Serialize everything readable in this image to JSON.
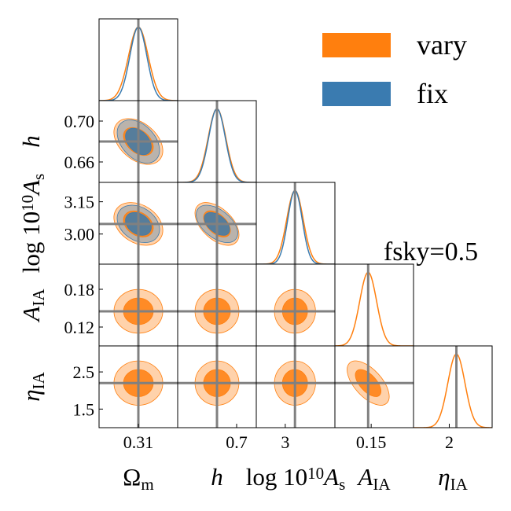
{
  "chart_data": {
    "type": "corner",
    "annotation": "fsky=0.5",
    "params": [
      {
        "label": [
          {
            "text": "Ω"
          },
          {
            "text": "m",
            "pos": "sub"
          }
        ],
        "truth": 0.31,
        "lim": [
          0.25,
          0.37
        ],
        "xticks": [
          0.31
        ]
      },
      {
        "label": [
          {
            "text": "h",
            "italic": true
          }
        ],
        "truth": 0.68,
        "lim": [
          0.64,
          0.72
        ],
        "xticks": [
          0.7
        ],
        "yticks": [
          {
            "value": 0.7,
            "label": "0.70"
          },
          0.66
        ]
      },
      {
        "label": [
          {
            "text": "log 10"
          },
          {
            "text": "10",
            "pos": "sup"
          },
          {
            "text": "A",
            "italic": true
          },
          {
            "text": "s",
            "pos": "sub"
          }
        ],
        "truth": 3.047,
        "lim": [
          2.86,
          3.24
        ],
        "xticks": [
          3
        ],
        "yticks": [
          3.15,
          {
            "value": 3,
            "label": "3.00"
          }
        ]
      },
      {
        "label": [
          {
            "text": "A",
            "italic": true
          },
          {
            "text": "IA",
            "pos": "sub"
          }
        ],
        "truth": 0.145,
        "lim": [
          0.09,
          0.22
        ],
        "xticks": [
          0.15
        ],
        "yticks": [
          0.18,
          0.12
        ]
      },
      {
        "label": [
          {
            "text": "η",
            "italic": true
          },
          {
            "text": "IA",
            "pos": "sub"
          }
        ],
        "truth": 2.2,
        "lim": [
          1.0,
          3.2
        ],
        "xticks": [
          2
        ],
        "yticks": [
          2.5,
          1.5
        ]
      }
    ],
    "correlation": [
      [
        1,
        -0.4,
        -0.3,
        0,
        0
      ],
      [
        -0.4,
        1,
        -0.5,
        0,
        0
      ],
      [
        -0.3,
        -0.5,
        1,
        0,
        0
      ],
      [
        0,
        0,
        0,
        1,
        -0.6
      ],
      [
        0,
        0,
        0,
        -0.6,
        1
      ]
    ],
    "series": [
      {
        "name": "vary",
        "color": "#ff7f0e",
        "mean": [
          0.31,
          0.68,
          3.047,
          0.145,
          2.2
        ],
        "sigma": [
          0.015,
          0.009,
          0.04,
          0.014,
          0.24
        ]
      },
      {
        "name": "fix",
        "color": "#3a7bb0",
        "mean": [
          0.31,
          0.68,
          3.047,
          null,
          null
        ],
        "sigma": [
          0.013,
          0.0085,
          0.035,
          null,
          null
        ]
      }
    ]
  }
}
